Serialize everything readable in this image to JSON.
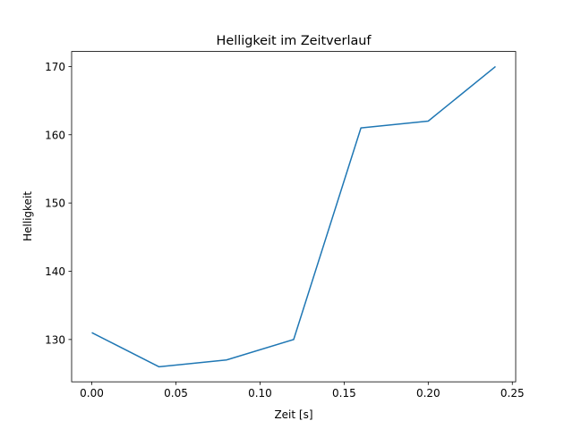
{
  "chart_data": {
    "type": "line",
    "title": "Helligkeit im Zeitverlauf",
    "xlabel": "Zeit [s]",
    "ylabel": "Helligkeit",
    "x": [
      0.0,
      0.04,
      0.08,
      0.12,
      0.16,
      0.2,
      0.24
    ],
    "series": [
      {
        "name": "Helligkeit",
        "values": [
          131,
          126,
          127,
          130,
          161,
          162,
          170
        ],
        "color": "#1f77b4"
      }
    ],
    "xlim": [
      -0.012,
      0.252
    ],
    "ylim": [
      123.8,
      172.2
    ],
    "xticks": [
      0.0,
      0.05,
      0.1,
      0.15,
      0.2,
      0.25
    ],
    "xtick_labels": [
      "0.00",
      "0.05",
      "0.10",
      "0.15",
      "0.20",
      "0.25"
    ],
    "yticks": [
      130,
      140,
      150,
      160,
      170
    ],
    "ytick_labels": [
      "130",
      "140",
      "150",
      "160",
      "170"
    ],
    "grid": false,
    "legend": "none"
  }
}
